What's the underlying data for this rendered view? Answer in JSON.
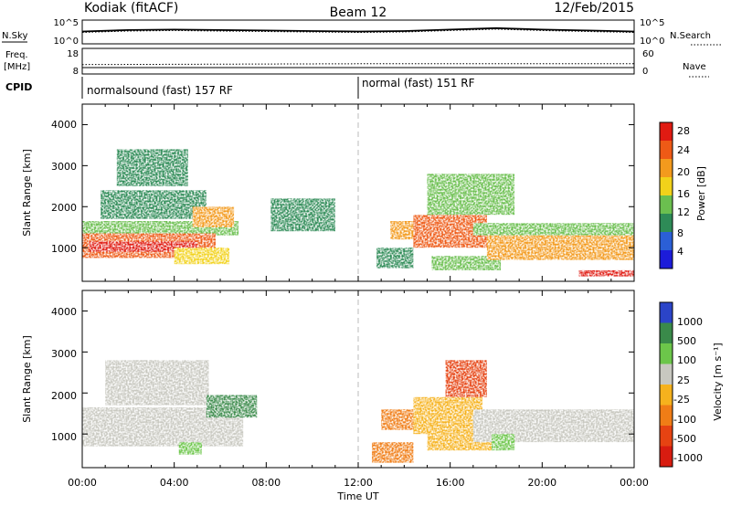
{
  "header": {
    "station": "Kodiak (fitACF)",
    "beam": "Beam 12",
    "date": "12/Feb/2015"
  },
  "noise_panel": {
    "left_label": "N.Sky",
    "right_label": "N.Search",
    "left_ticks": [
      "10^5",
      "10^0"
    ],
    "right_ticks": [
      "10^5",
      "10^0"
    ]
  },
  "freq_panel": {
    "left_label_1": "Freq.",
    "left_label_2": "[MHz]",
    "left_ticks": [
      "18",
      "8"
    ],
    "right_label": "Nave",
    "right_ticks": [
      "60",
      "0"
    ]
  },
  "cpid": {
    "label": "CPID",
    "segments": [
      {
        "text": "normalsound (fast) 157 RF",
        "start_hour": 0
      },
      {
        "text": "normal (fast) 151 RF",
        "start_hour": 12
      }
    ]
  },
  "x_axis": {
    "label": "Time UT",
    "ticks": [
      "00:00",
      "04:00",
      "08:00",
      "12:00",
      "16:00",
      "20:00",
      "00:00"
    ],
    "range_hours": [
      0,
      24
    ]
  },
  "power_panel": {
    "ylabel": "Slant Range [km]",
    "yticks": [
      "4000",
      "3000",
      "2000",
      "1000"
    ],
    "colorbar_label": "Power [dB]",
    "colorbar_ticks": [
      "28",
      "24",
      "20",
      "16",
      "12",
      "8",
      "4"
    ],
    "colors": [
      "#1c1cd9",
      "#2b5fd6",
      "#2e8b57",
      "#6bbf4f",
      "#f2d21a",
      "#f39a1d",
      "#ee5a16",
      "#e01b12"
    ]
  },
  "velocity_panel": {
    "ylabel": "Slant Range [km]",
    "yticks": [
      "4000",
      "3000",
      "2000",
      "1000"
    ],
    "colorbar_label": "Velocity [m s⁻¹]",
    "colorbar_ticks": [
      "1000",
      "500",
      "100",
      "25",
      "-25",
      "-100",
      "-500",
      "-1000"
    ],
    "colors": [
      "#2b44c8",
      "#3a8a4a",
      "#6cc64a",
      "#c8c8c0",
      "#f6b21d",
      "#f07d16",
      "#e64312",
      "#d81c10"
    ]
  },
  "chart_data": [
    {
      "type": "line",
      "name": "noise",
      "x_range_hours": [
        0,
        24
      ],
      "ylim_log10": [
        0,
        5
      ],
      "series": [
        {
          "name": "N.Sky",
          "x": [
            0,
            2,
            4,
            6,
            8,
            10,
            12,
            14,
            16,
            18,
            20,
            22,
            24
          ],
          "y_log10": [
            2.6,
            2.9,
            3.0,
            2.9,
            2.8,
            2.7,
            2.6,
            2.7,
            3.0,
            3.3,
            3.0,
            2.8,
            2.6
          ]
        },
        {
          "name": "N.Search",
          "x": [
            0,
            2,
            4,
            6,
            8,
            10,
            12,
            14,
            16,
            18,
            20,
            22,
            24
          ],
          "y_log10": [
            2.4,
            2.7,
            2.8,
            2.7,
            2.6,
            2.5,
            2.4,
            2.5,
            2.8,
            3.1,
            2.8,
            2.6,
            2.4
          ]
        }
      ]
    },
    {
      "type": "line",
      "name": "frequency_nave",
      "x_range_hours": [
        0,
        24
      ],
      "freq_ylim": [
        8,
        18
      ],
      "nave_ylim": [
        0,
        60
      ],
      "series": [
        {
          "name": "Freq.",
          "x": [
            0,
            12,
            24
          ],
          "y": [
            10.5,
            10.5,
            10.5
          ]
        },
        {
          "name": "Nave",
          "x": [
            0,
            12,
            24
          ],
          "y": [
            22,
            24,
            24
          ]
        }
      ]
    },
    {
      "type": "heatmap",
      "name": "power",
      "x_range_hours": [
        0,
        24
      ],
      "ylim_km": [
        180,
        4500
      ],
      "zlim_db": [
        0,
        30
      ],
      "regions": [
        {
          "t0": 0.0,
          "t1": 6.8,
          "r0": 1300,
          "r1": 1650,
          "db": 12
        },
        {
          "t0": 0.0,
          "t1": 5.8,
          "r0": 750,
          "r1": 1350,
          "db": 24
        },
        {
          "t0": 0.3,
          "t1": 5.0,
          "r0": 900,
          "r1": 1150,
          "db": 30
        },
        {
          "t0": 0.8,
          "t1": 5.4,
          "r0": 1700,
          "r1": 2400,
          "db": 10
        },
        {
          "t0": 1.5,
          "t1": 4.6,
          "r0": 2500,
          "r1": 3400,
          "db": 8
        },
        {
          "t0": 4.0,
          "t1": 6.4,
          "r0": 600,
          "r1": 1000,
          "db": 18
        },
        {
          "t0": 4.8,
          "t1": 6.6,
          "r0": 1500,
          "r1": 2000,
          "db": 22
        },
        {
          "t0": 8.2,
          "t1": 11.0,
          "r0": 1400,
          "r1": 2200,
          "db": 8
        },
        {
          "t0": 12.8,
          "t1": 14.4,
          "r0": 500,
          "r1": 1000,
          "db": 9
        },
        {
          "t0": 13.4,
          "t1": 14.6,
          "r0": 1200,
          "r1": 1650,
          "db": 22
        },
        {
          "t0": 14.4,
          "t1": 17.6,
          "r0": 1000,
          "r1": 1800,
          "db": 24
        },
        {
          "t0": 15.2,
          "t1": 18.2,
          "r0": 450,
          "r1": 800,
          "db": 12
        },
        {
          "t0": 15.0,
          "t1": 18.8,
          "r0": 1800,
          "r1": 2800,
          "db": 12
        },
        {
          "t0": 17.0,
          "t1": 24.0,
          "r0": 1300,
          "r1": 1600,
          "db": 12
        },
        {
          "t0": 17.6,
          "t1": 24.0,
          "r0": 700,
          "r1": 1300,
          "db": 22
        },
        {
          "t0": 21.6,
          "t1": 24.0,
          "r0": 300,
          "r1": 450,
          "db": 30
        }
      ]
    },
    {
      "type": "heatmap",
      "name": "velocity",
      "x_range_hours": [
        0,
        24
      ],
      "ylim_km": [
        180,
        4500
      ],
      "zlim_ms": [
        -1000,
        1000
      ],
      "regions": [
        {
          "t0": 0.0,
          "t1": 7.0,
          "r0": 700,
          "r1": 1650,
          "v": 0
        },
        {
          "t0": 1.0,
          "t1": 5.5,
          "r0": 1700,
          "r1": 2800,
          "v": 0
        },
        {
          "t0": 4.2,
          "t1": 5.2,
          "r0": 500,
          "r1": 800,
          "v": 100
        },
        {
          "t0": 5.4,
          "t1": 7.6,
          "r0": 1400,
          "r1": 1950,
          "v": 400
        },
        {
          "t0": 12.6,
          "t1": 14.4,
          "r0": 300,
          "r1": 800,
          "v": -200
        },
        {
          "t0": 13.0,
          "t1": 14.6,
          "r0": 1100,
          "r1": 1600,
          "v": -300
        },
        {
          "t0": 14.4,
          "t1": 17.4,
          "r0": 1000,
          "r1": 1900,
          "v": -100
        },
        {
          "t0": 15.0,
          "t1": 17.8,
          "r0": 600,
          "r1": 1000,
          "v": -80
        },
        {
          "t0": 15.8,
          "t1": 17.6,
          "r0": 1900,
          "r1": 2800,
          "v": -700
        },
        {
          "t0": 17.0,
          "t1": 24.0,
          "r0": 800,
          "r1": 1600,
          "v": 0
        },
        {
          "t0": 17.8,
          "t1": 18.8,
          "r0": 600,
          "r1": 1000,
          "v": 150
        }
      ]
    }
  ]
}
